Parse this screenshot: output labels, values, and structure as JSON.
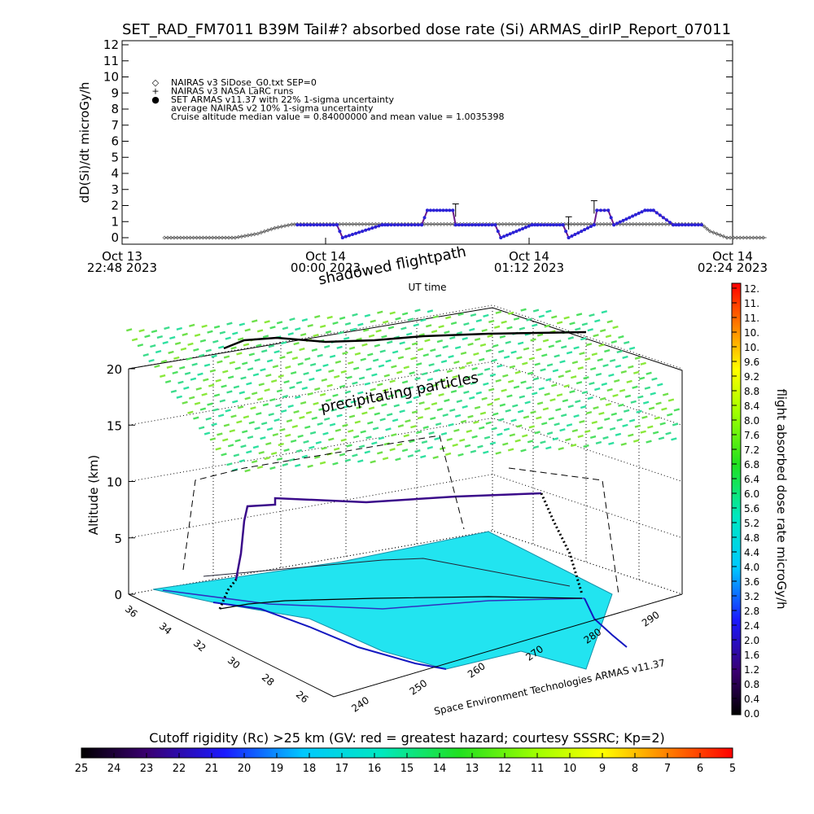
{
  "chart_data": [
    {
      "type": "line",
      "title": "SET_RAD_FM7011  B39M Tail#? absorbed dose rate (Si) ARMAS_dirIP_Report_07011",
      "ylabel": "dD(Si)/dt microGy/h",
      "xlabel": "UT time",
      "ylim": [
        0,
        12
      ],
      "y_ticks": [
        "0",
        "1",
        "2",
        "3",
        "4",
        "5",
        "6",
        "7",
        "8",
        "9",
        "10",
        "11",
        "12"
      ],
      "x_ticks": [
        {
          "top": "Oct 13",
          "bottom": "22:48 2023"
        },
        {
          "top": "Oct 14",
          "bottom": "00:00 2023"
        },
        {
          "top": "Oct 14",
          "bottom": "01:12 2023"
        },
        {
          "top": "Oct 14",
          "bottom": "02:24 2023"
        }
      ],
      "x_range_minutes": [
        0,
        216
      ],
      "legend_placement": "top-left",
      "legend": [
        {
          "symbol": "◇",
          "text": "NAIRAS v3 SiDose_G0.txt SEP=0"
        },
        {
          "symbol": "+",
          "text": "NAIRAS v3 NASA LaRC runs"
        },
        {
          "symbol": "●",
          "text": "SET ARMAS v11.37 with 22% 1-sigma uncertainty",
          "color": "#2222ee"
        },
        {
          "symbol": "",
          "text": "average NAIRAS v2 10% 1-sigma uncertainty"
        },
        {
          "symbol": "",
          "text": "Cruise altitude median value = 0.84000000 and mean value = 1.0035398"
        }
      ],
      "series": [
        {
          "name": "SET ARMAS v11.37 with 22% 1-sigma uncertainty",
          "color": "#2a22d8",
          "x": [
            62,
            76,
            78,
            92,
            94,
            106,
            108,
            117,
            118,
            132,
            134,
            145,
            147,
            156,
            158,
            167,
            168,
            172,
            174,
            185,
            188,
            195,
            197,
            205
          ],
          "y": [
            0.8,
            0.8,
            0,
            0.8,
            0.8,
            0.8,
            1.7,
            1.7,
            0.8,
            0.8,
            0,
            0.8,
            0.8,
            0.8,
            0,
            0.8,
            1.7,
            1.7,
            0.8,
            1.7,
            1.7,
            0.8,
            0.8,
            0.8
          ]
        },
        {
          "name": "NAIRAS v3 SiDose_G0.txt SEP=0",
          "color": "#555555",
          "x": [
            15,
            40,
            48,
            54,
            60,
            62,
            205,
            208,
            214,
            228
          ],
          "y": [
            0,
            0,
            0.25,
            0.6,
            0.82,
            0.84,
            0.84,
            0.4,
            0,
            0
          ]
        }
      ]
    },
    {
      "type": "surface3d",
      "annotations": [
        "shadowed flightpath",
        "precipitating particles",
        "Space Environment Technologies ARMAS v11.37"
      ],
      "zlabel": "Altitude (km)",
      "z_ticks": [
        "0",
        "5",
        "10",
        "15",
        "20"
      ],
      "lat_ticks": [
        "36",
        "34",
        "32",
        "30",
        "28",
        "26"
      ],
      "lon_ticks": [
        "240",
        "250",
        "260",
        "270",
        "280",
        "290"
      ],
      "cruise_altitude_km": 10.5,
      "flightpath_shadow_altitude_km": 22.5
    },
    {
      "type": "colorbar",
      "label": "flight absorbed dose rate microGy/h",
      "ticks": [
        "0.0",
        "0.4",
        "0.8",
        "1.2",
        "1.6",
        "2.0",
        "2.4",
        "2.8",
        "3.2",
        "3.6",
        "4.0",
        "4.4",
        "4.8",
        "5.2",
        "5.6",
        "6.0",
        "6.4",
        "6.8",
        "7.2",
        "7.6",
        "8.0",
        "8.4",
        "8.8",
        "9.2",
        "9.6",
        "10.",
        "10.",
        "11.",
        "11.",
        "12."
      ]
    },
    {
      "type": "colorbar",
      "label": "Cutoff rigidity (Rc) >25 km (GV: red = greatest hazard; courtesy SSSRC; Kp=2)",
      "ticks": [
        "25",
        "24",
        "23",
        "22",
        "21",
        "20",
        "19",
        "18",
        "17",
        "16",
        "15",
        "14",
        "13",
        "12",
        "11",
        "10",
        "9",
        "8",
        "7",
        "6",
        "5"
      ]
    }
  ]
}
